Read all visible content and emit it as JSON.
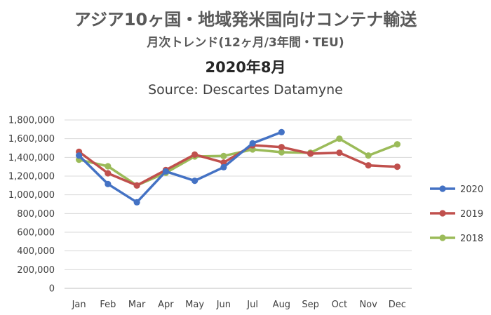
{
  "chart_data": {
    "type": "line",
    "title": "アジア10ヶ国・地域発米国向けコンテナ輸送",
    "subtitle": "月次トレンド(12ヶ月/3年間・TEU)",
    "period": "2020年8月",
    "source": "Source: Descartes Datamyne",
    "categories": [
      "Jan",
      "Feb",
      "Mar",
      "Apr",
      "May",
      "Jun",
      "Jul",
      "Aug",
      "Sep",
      "Oct",
      "Nov",
      "Dec"
    ],
    "ylim": [
      0,
      1800000
    ],
    "yticks": [
      "0",
      "200,000",
      "400,000",
      "600,000",
      "800,000",
      "1,000,000",
      "1,200,000",
      "1,400,000",
      "1,600,000",
      "1,800,000"
    ],
    "grid": true,
    "legend_position": "right",
    "series": [
      {
        "name": "2020",
        "color": "#4472C4",
        "values": [
          1420000,
          1115000,
          920000,
          1250000,
          1150000,
          1295000,
          1550000,
          1670000,
          null,
          null,
          null,
          null
        ]
      },
      {
        "name": "2019",
        "color": "#C0504D",
        "values": [
          1460000,
          1230000,
          1100000,
          1265000,
          1430000,
          1345000,
          1530000,
          1510000,
          1440000,
          1450000,
          1315000,
          1300000
        ]
      },
      {
        "name": "2018",
        "color": "#9BBB59",
        "values": [
          1375000,
          1305000,
          1100000,
          1235000,
          1410000,
          1415000,
          1485000,
          1455000,
          1450000,
          1600000,
          1420000,
          1540000
        ]
      }
    ]
  }
}
